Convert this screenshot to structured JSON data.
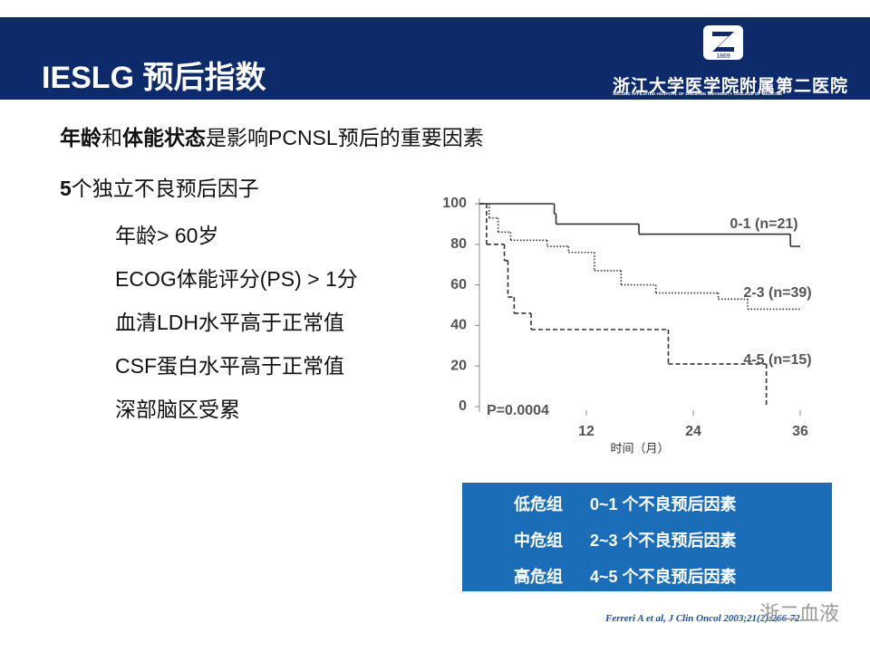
{
  "header": {
    "title": "IESLG 预后指数",
    "logo_year": "1869",
    "hospital": "浙江大学医学院附属第二医院",
    "hospital_en": "SECOND AFFILIATED HOSPITAL OF ZHEJIANG UNIVERSITY COLLEGE OF MEDICINE"
  },
  "intro": [
    {
      "text": "年龄",
      "bold": true
    },
    {
      "text": "和",
      "bold": false
    },
    {
      "text": "体能状态",
      "bold": true
    },
    {
      "text": "是影响PCNSL预后的重要因素",
      "bold": false
    }
  ],
  "factors_heading": [
    {
      "text": "5",
      "bold": true
    },
    {
      "text": "个独立不良预后因子",
      "bold": false
    }
  ],
  "factors": [
    "年龄> 60岁",
    "ECOG体能评分(PS) > 1分",
    "血清LDH水平高于正常值",
    "CSF蛋白水平高于正常值",
    "深部脑区受累"
  ],
  "chart_data": {
    "type": "step",
    "xlabel": "时间（月）",
    "xlim": [
      0,
      36
    ],
    "xticks": [
      12,
      24,
      36
    ],
    "ylim": [
      0,
      100
    ],
    "yticks": [
      0,
      20,
      40,
      60,
      80,
      100
    ],
    "annotation": "P=0.0004",
    "series": [
      {
        "name": "0-1 (n=21)",
        "color": "#333333",
        "dash": "solid",
        "x": [
          0,
          8.4,
          8.6,
          17.9,
          34.9,
          36
        ],
        "values": [
          100,
          95,
          90,
          85,
          79,
          79
        ]
      },
      {
        "name": "2-3 (n=39)",
        "color": "#333333",
        "dash": "dotted",
        "x": [
          0,
          1.1,
          2.1,
          3.5,
          7.6,
          10,
          12.9,
          15.9,
          19.8,
          26.8,
          30.1,
          36
        ],
        "values": [
          100,
          93,
          86,
          82,
          79,
          76,
          67,
          60,
          56,
          53,
          48,
          48
        ]
      },
      {
        "name": "4-5 (n=15)",
        "color": "#333333",
        "dash": "dashed",
        "x": [
          0,
          0.8,
          2.8,
          3.2,
          3.9,
          5.8,
          21.2,
          32.2
        ],
        "values": [
          100,
          80,
          72,
          54,
          46,
          38,
          21,
          0
        ]
      }
    ]
  },
  "table": {
    "color": "#1c6db7",
    "rows": [
      [
        "低危组",
        "0~1 个不良预后因素"
      ],
      [
        "中危组",
        "2~3 个不良预后因素"
      ],
      [
        "高危组",
        "4~5 个不良预后因素"
      ]
    ]
  },
  "citation": "Ferreri A et al, J Clin Oncol 2003;21(2):266-72",
  "watermark": "浙二血液"
}
